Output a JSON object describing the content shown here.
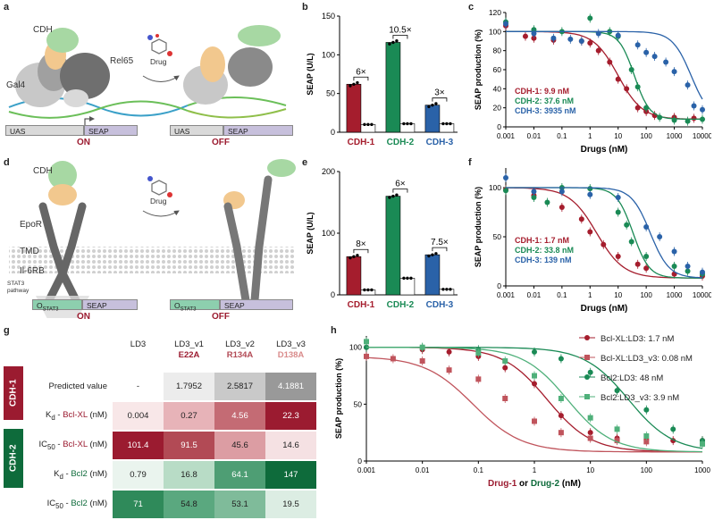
{
  "panels": {
    "a": "a",
    "b": "b",
    "c": "c",
    "d": "d",
    "e": "e",
    "f": "f",
    "g": "g",
    "h": "h"
  },
  "panel_a": {
    "cdh_label": "CDH",
    "gal4_label": "Gal4",
    "rel65_label": "Rel65",
    "drug_label": "Drug",
    "uas": "UAS",
    "seap": "SEAP",
    "on": "ON",
    "off": "OFF"
  },
  "panel_d": {
    "cdh_label": "CDH",
    "drug_label": "Drug",
    "epor": "EpoR",
    "tmd": "TMD",
    "il6rb": "Il-6RB",
    "stat3_pathway": "STAT3\npathway",
    "ostat3": "O",
    "ostat3_sub": "STAT3",
    "seap": "SEAP",
    "on": "ON",
    "off": "OFF"
  },
  "colors": {
    "cdh1": "#a51d2d",
    "cdh2": "#1a8a55",
    "cdh3": "#2a62a8",
    "red_dark": "#9b1b30",
    "green_dark": "#0e6b3b"
  },
  "chart_data": [
    {
      "id": "b",
      "type": "bar",
      "ylabel": "SEAP (U/L)",
      "ylim": [
        0,
        150
      ],
      "yticks": [
        0,
        50,
        100,
        150
      ],
      "categories": [
        "CDH-1",
        "CDH-2",
        "CDH-3"
      ],
      "series": [
        {
          "name": "no drug",
          "values": [
            62,
            116,
            35
          ]
        },
        {
          "name": "drug",
          "values": [
            10,
            11,
            11
          ]
        }
      ],
      "fold_annotations": [
        "6×",
        "10.5×",
        "3×"
      ]
    },
    {
      "id": "c",
      "type": "line",
      "ylabel": "SEAP production (%)",
      "xlabel": "Drugs (nM)",
      "xscale": "log",
      "xlim": [
        0.001,
        10000
      ],
      "ylim": [
        0,
        120
      ],
      "yticks": [
        0,
        20,
        40,
        60,
        80,
        100,
        120
      ],
      "xticks": [
        "0.001",
        "0.01",
        "0.1",
        "1",
        "10",
        "100",
        "1000",
        "10000"
      ],
      "legend": [
        "CDH-1: 9.9 nM",
        "CDH-2: 37.6 nM",
        "CDH-3: 3935 nM"
      ],
      "series": [
        {
          "name": "CDH-1",
          "ic50": 9.9,
          "hill": 1,
          "points": [
            [
              0.001,
              106
            ],
            [
              0.005,
              95
            ],
            [
              0.01,
              93
            ],
            [
              0.05,
              91
            ],
            [
              0.5,
              90
            ],
            [
              1,
              88
            ],
            [
              2,
              80
            ],
            [
              5,
              68
            ],
            [
              10,
              50
            ],
            [
              20,
              40
            ],
            [
              50,
              20
            ],
            [
              100,
              16
            ],
            [
              200,
              12
            ],
            [
              1000,
              10
            ],
            [
              5000,
              9
            ]
          ]
        },
        {
          "name": "CDH-2",
          "ic50": 37.6,
          "hill": 1.6,
          "points": [
            [
              0.001,
              110
            ],
            [
              0.01,
              102
            ],
            [
              0.1,
              100
            ],
            [
              1,
              114
            ],
            [
              5,
              100
            ],
            [
              10,
              95
            ],
            [
              30,
              60
            ],
            [
              50,
              42
            ],
            [
              100,
              20
            ],
            [
              300,
              10
            ],
            [
              1000,
              7
            ],
            [
              3000,
              6
            ],
            [
              10000,
              8
            ]
          ]
        },
        {
          "name": "CDH-3",
          "ic50": 3935,
          "hill": 1.3,
          "points": [
            [
              0.001,
              108
            ],
            [
              0.01,
              98
            ],
            [
              0.05,
              93
            ],
            [
              0.2,
              92
            ],
            [
              0.5,
              90
            ],
            [
              2,
              98
            ],
            [
              10,
              96
            ],
            [
              50,
              86
            ],
            [
              100,
              78
            ],
            [
              200,
              74
            ],
            [
              500,
              68
            ],
            [
              1000,
              58
            ],
            [
              3000,
              44
            ],
            [
              5000,
              22
            ],
            [
              10000,
              18
            ]
          ]
        }
      ]
    },
    {
      "id": "e",
      "type": "bar",
      "ylabel": "SEAP (U/L)",
      "ylim": [
        0,
        200
      ],
      "yticks": [
        0,
        100,
        200
      ],
      "categories": [
        "CDH-1",
        "CDH-2",
        "CDH-3"
      ],
      "series": [
        {
          "name": "no drug",
          "values": [
            62,
            160,
            65
          ]
        },
        {
          "name": "drug",
          "values": [
            8,
            27,
            9
          ]
        }
      ],
      "fold_annotations": [
        "8×",
        "6×",
        "7.5×"
      ]
    },
    {
      "id": "f",
      "type": "line",
      "ylabel": "SEAP production (%)",
      "xlabel": "Drugs (nM)",
      "xscale": "log",
      "xlim": [
        0.001,
        10000
      ],
      "ylim": [
        0,
        120
      ],
      "yticks": [
        0,
        50,
        100
      ],
      "xticks": [
        "0.001",
        "0.01",
        "0.1",
        "1",
        "10",
        "100",
        "1000",
        "10000"
      ],
      "legend": [
        "CDH-1: 1.7 nM",
        "CDH-2: 33.8 nM",
        "CDH-3: 139 nM"
      ],
      "series": [
        {
          "name": "CDH-1",
          "ic50": 1.7,
          "hill": 0.9,
          "points": [
            [
              0.001,
              98
            ],
            [
              0.01,
              92
            ],
            [
              0.1,
              80
            ],
            [
              0.5,
              68
            ],
            [
              1,
              55
            ],
            [
              3,
              42
            ],
            [
              10,
              30
            ],
            [
              50,
              22
            ],
            [
              100,
              18
            ],
            [
              1000,
              12
            ],
            [
              10000,
              10
            ]
          ]
        },
        {
          "name": "CDH-2",
          "ic50": 33.8,
          "hill": 1.5,
          "points": [
            [
              0.001,
              97
            ],
            [
              0.01,
              90
            ],
            [
              0.03,
              85
            ],
            [
              0.1,
              100
            ],
            [
              1,
              99
            ],
            [
              10,
              75
            ],
            [
              20,
              62
            ],
            [
              30,
              45
            ],
            [
              100,
              30
            ],
            [
              1000,
              20
            ],
            [
              3000,
              15
            ],
            [
              10000,
              12
            ]
          ]
        },
        {
          "name": "CDH-3",
          "ic50": 139,
          "hill": 1.3,
          "points": [
            [
              0.001,
              110
            ],
            [
              0.01,
              96
            ],
            [
              0.1,
              96
            ],
            [
              1,
              93
            ],
            [
              10,
              90
            ],
            [
              100,
              60
            ],
            [
              300,
              50
            ],
            [
              1000,
              35
            ],
            [
              3000,
              20
            ],
            [
              10000,
              14
            ]
          ]
        }
      ]
    },
    {
      "id": "h",
      "type": "line",
      "ylabel": "SEAP production (%)",
      "xscale": "log",
      "xlabel_parts": [
        "Drug-1",
        " or ",
        "Drug-2",
        " (nM)"
      ],
      "xlim": [
        0.001,
        1000
      ],
      "ylim": [
        0,
        110
      ],
      "yticks": [
        0,
        50,
        100
      ],
      "xticks": [
        "0.001",
        "0.01",
        "0.1",
        "1",
        "10",
        "100",
        "1000"
      ],
      "legend": [
        "Bcl-XL:LD3: 1.7 nM",
        "Bcl-XL:LD3_v3: 0.08 nM",
        "Bcl2:LD3: 48 nM",
        "Bcl2:LD3_v3: 3.9 nM"
      ],
      "series": [
        {
          "name": "Bcl-XL:LD3",
          "ic50": 1.7,
          "hill": 1.1,
          "marker": "circle",
          "points": [
            [
              0.001,
              100
            ],
            [
              0.01,
              98
            ],
            [
              0.03,
              96
            ],
            [
              0.1,
              92
            ],
            [
              0.3,
              82
            ],
            [
              1,
              68
            ],
            [
              3,
              40
            ],
            [
              10,
              25
            ],
            [
              30,
              20
            ],
            [
              100,
              19
            ],
            [
              300,
              18
            ],
            [
              1000,
              18
            ]
          ]
        },
        {
          "name": "Bcl-XL:LD3_v3",
          "ic50": 0.08,
          "hill": 1.0,
          "marker": "square",
          "points": [
            [
              0.001,
              92
            ],
            [
              0.003,
              90
            ],
            [
              0.01,
              88
            ],
            [
              0.03,
              80
            ],
            [
              0.1,
              72
            ],
            [
              0.3,
              55
            ],
            [
              1,
              35
            ],
            [
              3,
              25
            ],
            [
              10,
              20
            ],
            [
              30,
              18
            ],
            [
              100,
              17
            ],
            [
              1000,
              16
            ]
          ]
        },
        {
          "name": "Bcl2:LD3",
          "ic50": 48,
          "hill": 1.1,
          "marker": "circle",
          "points": [
            [
              0.001,
              100
            ],
            [
              0.01,
              100
            ],
            [
              0.1,
              98
            ],
            [
              1,
              96
            ],
            [
              3,
              90
            ],
            [
              10,
              78
            ],
            [
              30,
              62
            ],
            [
              100,
              45
            ],
            [
              300,
              28
            ],
            [
              1000,
              18
            ]
          ]
        },
        {
          "name": "Bcl2:LD3_v3",
          "ic50": 3.9,
          "hill": 1.1,
          "marker": "square",
          "points": [
            [
              0.001,
              105
            ],
            [
              0.01,
              100
            ],
            [
              0.1,
              95
            ],
            [
              0.3,
              88
            ],
            [
              1,
              75
            ],
            [
              3,
              55
            ],
            [
              10,
              38
            ],
            [
              30,
              28
            ],
            [
              100,
              22
            ],
            [
              1000,
              15
            ]
          ]
        }
      ]
    }
  ],
  "table_g": {
    "headers": [
      "LD3",
      "LD3_v1",
      "LD3_v2",
      "LD3_v3"
    ],
    "mutations": [
      "",
      "E22A",
      "R134A",
      "D138A"
    ],
    "rows": [
      {
        "label": "Predicted value",
        "values": [
          "-",
          "1.7952",
          "2.5817",
          "4.1881"
        ]
      },
      {
        "label": "K",
        "sub": "d",
        "suffix": " - ",
        "target": "Bcl-XL",
        "unit": " (nM)",
        "values": [
          "0.004",
          "0.27",
          "4.56",
          "22.3"
        ]
      },
      {
        "label": "IC",
        "sub": "50",
        "suffix": " - ",
        "target": "Bcl-XL",
        "unit": " (nM)",
        "values": [
          "101.4",
          "91.5",
          "45.6",
          "14.6"
        ]
      },
      {
        "label": "K",
        "sub": "d",
        "suffix": " - ",
        "target": "Bcl2",
        "unit": " (nM)",
        "values": [
          "0.79",
          "16.8",
          "64.1",
          "147"
        ]
      },
      {
        "label": "IC",
        "sub": "50",
        "suffix": " - ",
        "target": "Bcl2",
        "unit": " (nM)",
        "values": [
          "71",
          "54.8",
          "53.1",
          "19.5"
        ]
      }
    ],
    "side_labels": [
      "CDH-1",
      "CDH-2"
    ]
  }
}
